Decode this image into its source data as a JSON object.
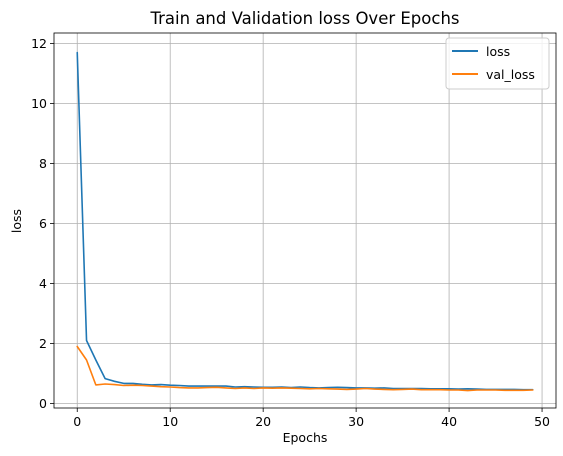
{
  "chart_data": {
    "type": "line",
    "title": "Train and Validation loss Over Epochs",
    "xlabel": "Epochs",
    "ylabel": "loss",
    "xlim": [
      -2.5,
      51.5
    ],
    "ylim": [
      -0.15,
      12.35
    ],
    "xticks": [
      0,
      10,
      20,
      30,
      40,
      50
    ],
    "yticks": [
      0,
      2,
      4,
      6,
      8,
      10,
      12
    ],
    "grid": true,
    "legend_position": "top-right",
    "x": [
      0,
      1,
      2,
      3,
      4,
      5,
      6,
      7,
      8,
      9,
      10,
      11,
      12,
      13,
      14,
      15,
      16,
      17,
      18,
      19,
      20,
      21,
      22,
      23,
      24,
      25,
      26,
      27,
      28,
      29,
      30,
      31,
      32,
      33,
      34,
      35,
      36,
      37,
      38,
      39,
      40,
      41,
      42,
      43,
      44,
      45,
      46,
      47,
      48,
      49
    ],
    "series": [
      {
        "name": "loss",
        "color": "#1f77b4",
        "values": [
          11.7,
          2.1,
          1.45,
          0.83,
          0.74,
          0.67,
          0.67,
          0.64,
          0.62,
          0.63,
          0.61,
          0.6,
          0.58,
          0.58,
          0.58,
          0.58,
          0.58,
          0.55,
          0.56,
          0.55,
          0.54,
          0.54,
          0.55,
          0.53,
          0.55,
          0.53,
          0.52,
          0.53,
          0.54,
          0.53,
          0.52,
          0.52,
          0.51,
          0.52,
          0.5,
          0.5,
          0.5,
          0.5,
          0.49,
          0.49,
          0.49,
          0.48,
          0.49,
          0.48,
          0.47,
          0.47,
          0.47,
          0.47,
          0.46,
          0.46
        ]
      },
      {
        "name": "val_loss",
        "color": "#ff7f0e",
        "values": [
          1.9,
          1.45,
          0.62,
          0.65,
          0.63,
          0.6,
          0.61,
          0.6,
          0.58,
          0.56,
          0.55,
          0.53,
          0.52,
          0.52,
          0.53,
          0.54,
          0.52,
          0.5,
          0.52,
          0.5,
          0.52,
          0.51,
          0.52,
          0.51,
          0.5,
          0.49,
          0.5,
          0.49,
          0.48,
          0.47,
          0.48,
          0.5,
          0.48,
          0.47,
          0.46,
          0.47,
          0.48,
          0.46,
          0.46,
          0.46,
          0.45,
          0.45,
          0.43,
          0.45,
          0.45,
          0.45,
          0.44,
          0.44,
          0.44,
          0.45
        ]
      }
    ]
  }
}
